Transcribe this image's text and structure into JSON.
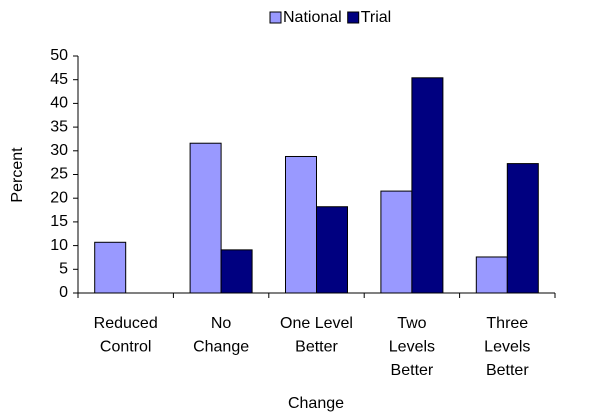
{
  "chart_data": {
    "type": "bar",
    "categories": [
      [
        "Reduced",
        "Control"
      ],
      [
        "No",
        "Change"
      ],
      [
        "One Level",
        "Better"
      ],
      [
        "Two",
        "Levels",
        "Better"
      ],
      [
        "Three",
        "Levels",
        "Better"
      ]
    ],
    "series": [
      {
        "name": "National",
        "color": "#9999ff",
        "values": [
          10.7,
          31.6,
          28.8,
          21.5,
          7.6
        ]
      },
      {
        "name": "Trial",
        "color": "#000080",
        "values": [
          0,
          9.1,
          18.2,
          45.4,
          27.3
        ]
      }
    ],
    "xlabel": "Change",
    "ylabel": "Percent",
    "ylim": [
      0,
      50
    ],
    "yticks": [
      0,
      5,
      10,
      15,
      20,
      25,
      30,
      35,
      40,
      45,
      50
    ],
    "legend": "top"
  }
}
